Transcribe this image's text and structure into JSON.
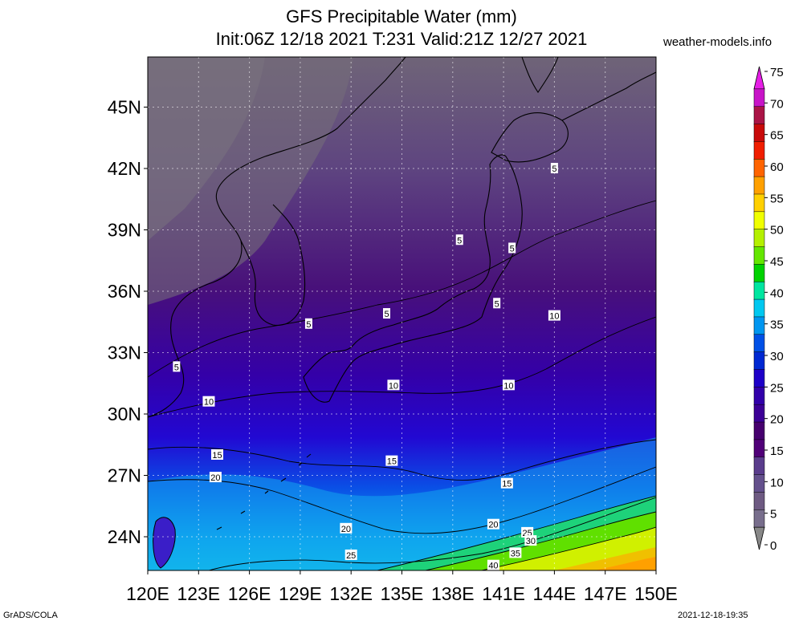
{
  "title": "GFS Precipitable Water (mm)",
  "subtitle": "Init:06Z 12/18 2021 T:231 Valid:21Z 12/27 2021",
  "site": "weather-models.info",
  "footer": {
    "left": "GrADS/COLA",
    "right": "2021-12-18-19:35"
  },
  "map": {
    "lon_labels": [
      "120E",
      "123E",
      "126E",
      "129E",
      "132E",
      "135E",
      "138E",
      "141E",
      "144E",
      "147E",
      "150E"
    ],
    "lat_labels": [
      "45N",
      "42N",
      "39N",
      "36N",
      "33N",
      "30N",
      "27N",
      "24N"
    ],
    "contour_labels": [
      {
        "text": "5",
        "lon": 144.0,
        "lat": 42.0
      },
      {
        "text": "5",
        "lon": 141.5,
        "lat": 38.1
      },
      {
        "text": "5",
        "lon": 138.4,
        "lat": 38.5
      },
      {
        "text": "5",
        "lon": 140.6,
        "lat": 35.4
      },
      {
        "text": "5",
        "lon": 134.1,
        "lat": 34.9
      },
      {
        "text": "5",
        "lon": 129.5,
        "lat": 34.4
      },
      {
        "text": "5",
        "lon": 121.7,
        "lat": 32.3
      },
      {
        "text": "10",
        "lon": 144.0,
        "lat": 34.8
      },
      {
        "text": "10",
        "lon": 141.3,
        "lat": 31.4
      },
      {
        "text": "10",
        "lon": 134.5,
        "lat": 31.4
      },
      {
        "text": "10",
        "lon": 123.6,
        "lat": 30.6
      },
      {
        "text": "15",
        "lon": 124.1,
        "lat": 28.0
      },
      {
        "text": "15",
        "lon": 134.4,
        "lat": 27.7
      },
      {
        "text": "15",
        "lon": 141.2,
        "lat": 26.6
      },
      {
        "text": "20",
        "lon": 124.0,
        "lat": 26.9
      },
      {
        "text": "20",
        "lon": 131.7,
        "lat": 24.4
      },
      {
        "text": "20",
        "lon": 140.4,
        "lat": 24.6
      },
      {
        "text": "25",
        "lon": 132.0,
        "lat": 23.1
      },
      {
        "text": "25",
        "lon": 142.4,
        "lat": 24.2
      },
      {
        "text": "30",
        "lon": 142.6,
        "lat": 23.8
      },
      {
        "text": "35",
        "lon": 141.7,
        "lat": 23.2
      },
      {
        "text": "40",
        "lon": 140.4,
        "lat": 22.6
      }
    ]
  },
  "colorbar": {
    "unit": "mm",
    "labels": [
      "75",
      "70",
      "65",
      "60",
      "55",
      "50",
      "45",
      "40",
      "35",
      "30",
      "25",
      "20",
      "15",
      "10",
      "5",
      "0"
    ],
    "colors": [
      "#e61ee6",
      "#c814c8",
      "#aa1446",
      "#c80a0a",
      "#f01e00",
      "#ff6400",
      "#ffa000",
      "#ffd000",
      "#f0ff00",
      "#b4f000",
      "#64e600",
      "#00d200",
      "#00e6a0",
      "#00c8f0",
      "#0096f0",
      "#0050e6",
      "#0028d2",
      "#1e00c8",
      "#3200aa",
      "#3c0096",
      "#46006e",
      "#500078",
      "#5a3c8c",
      "#64508c",
      "#6e5a82",
      "#786e8c",
      "#888888"
    ]
  }
}
